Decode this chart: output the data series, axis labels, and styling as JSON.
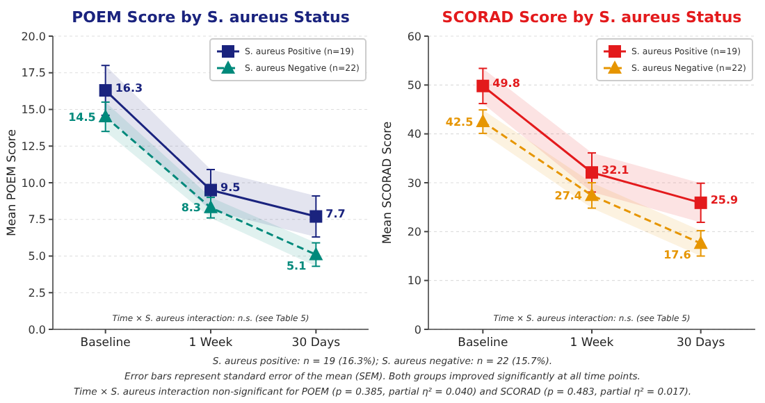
{
  "chart_data": [
    {
      "type": "line",
      "title": "POEM Score by S. aureus Status",
      "ylabel": "Mean POEM Score",
      "categories": [
        "Baseline",
        "1 Week",
        "30 Days"
      ],
      "ylim": [
        0,
        20
      ],
      "yticks": [
        {
          "value": 0,
          "label": "0.0"
        },
        {
          "value": 2.5,
          "label": "2.5"
        },
        {
          "value": 5,
          "label": "5.0"
        },
        {
          "value": 7.5,
          "label": "7.5"
        },
        {
          "value": 10,
          "label": "10.0"
        },
        {
          "value": 12.5,
          "label": "12.5"
        },
        {
          "value": 15,
          "label": "15.0"
        },
        {
          "value": 17.5,
          "label": "17.5"
        },
        {
          "value": 20,
          "label": "20.0"
        }
      ],
      "grid": "y",
      "legend": "top right",
      "data_labels": true,
      "annotations": [
        "Time × S. aureus interaction: n.s. (see Table 5)"
      ],
      "series": [
        {
          "name": "S. aureus Positive (n=19)",
          "color": "#1a237e",
          "values": [
            16.3,
            9.5,
            7.7
          ],
          "errors": [
            1.7,
            1.4,
            1.4
          ],
          "lower": [
            14.6,
            8.1,
            6.3
          ],
          "upper": [
            18.0,
            10.9,
            9.1
          ],
          "marker": "square",
          "line_style": "solid"
        },
        {
          "name": "S. aureus Negative (n=22)",
          "color": "#00897b",
          "values": [
            14.5,
            8.3,
            5.1
          ],
          "errors": [
            1.0,
            0.7,
            0.8
          ],
          "lower": [
            13.5,
            7.6,
            4.3
          ],
          "upper": [
            15.5,
            9.0,
            5.9
          ],
          "marker": "triangle",
          "line_style": "dashed"
        }
      ]
    },
    {
      "type": "line",
      "title": "SCORAD Score by S. aureus Status",
      "ylabel": "Mean SCORAD Score",
      "categories": [
        "Baseline",
        "1 Week",
        "30 Days"
      ],
      "ylim": [
        0,
        60
      ],
      "yticks": [
        0,
        10,
        20,
        30,
        40,
        50,
        60
      ],
      "grid": "y",
      "legend": "top right",
      "data_labels": true,
      "annotations": [
        "Time × S. aureus interaction: n.s. (see Table 5)",
        "S. aureus positive: n = 19 (16.3%); S. aureus negative: n = 22 (15.7%).",
        "Error bars represent standard error of the mean (SEM). Both groups improved significantly at all time points.",
        "Time × S. aureus interaction non-significant for POEM (p = 0.385, partial η² = 0.040) and SCORAD (p = 0.483, partial η² = 0.017)."
      ],
      "series": [
        {
          "name": "S. aureus Positive (n=19)",
          "color": "#e31a1c",
          "values": [
            49.8,
            32.1,
            25.9
          ],
          "errors": [
            3.6,
            4.0,
            4.0
          ],
          "lower": [
            46.2,
            28.1,
            21.9
          ],
          "upper": [
            53.4,
            36.1,
            29.9
          ],
          "marker": "square",
          "line_style": "solid"
        },
        {
          "name": "S. aureus Negative (n=22)",
          "color": "#e69500",
          "values": [
            42.5,
            27.4,
            17.6
          ],
          "errors": [
            2.4,
            2.6,
            2.6
          ],
          "lower": [
            40.1,
            24.8,
            15.0
          ],
          "upper": [
            44.9,
            30.0,
            20.2
          ],
          "marker": "triangle",
          "line_style": "dashed"
        }
      ]
    }
  ]
}
